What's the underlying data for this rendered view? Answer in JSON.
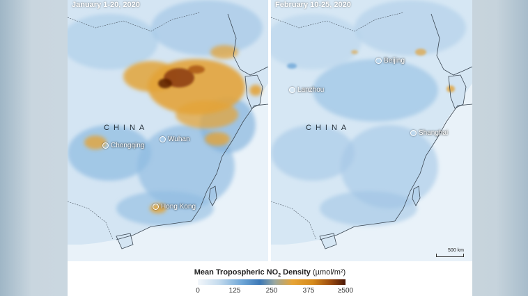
{
  "panels": [
    {
      "date": "January 1-20, 2020",
      "country": "CHINA",
      "cities": [
        "Chongqing",
        "Wuhan",
        "Hong Kong"
      ]
    },
    {
      "date": "February 10-25, 2020",
      "country": "CHINA",
      "cities": [
        "Beijing",
        "Lanzhou",
        "Shanghai"
      ]
    }
  ],
  "scale": "500 km",
  "legend": {
    "title_main": "Mean Tropospheric NO",
    "title_sub": "2",
    "title_rest": " Density",
    "unit": "(µmol/m²)",
    "ticks": [
      "0",
      "125",
      "250",
      "375",
      "≥500"
    ]
  },
  "colors": {
    "sea": "#e8f1f8",
    "land_low": "#cfe2f1",
    "land_mid": "#7fb1dc",
    "no2_high": "#e3a43a",
    "no2_peak": "#6b2a0a"
  }
}
